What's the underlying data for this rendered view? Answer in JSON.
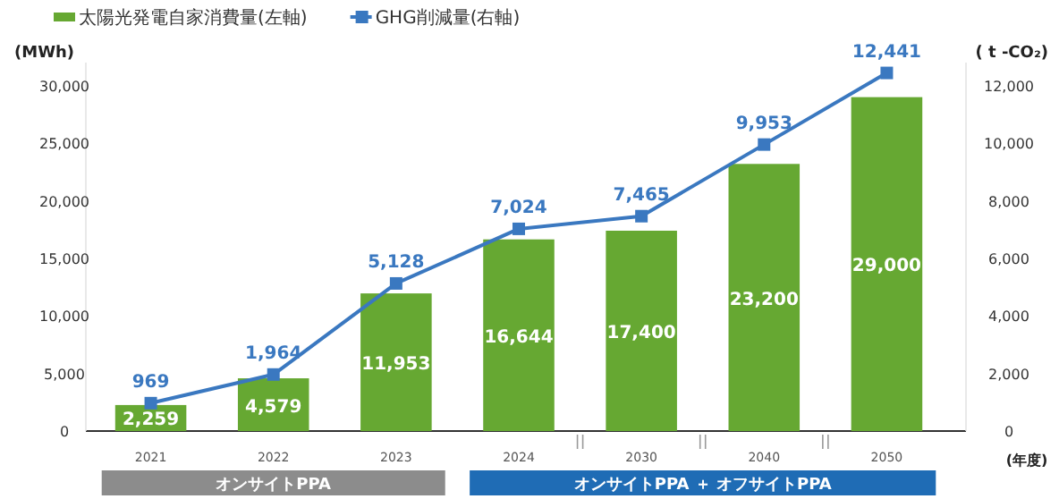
{
  "chart_data": {
    "type": "bar",
    "categories": [
      "2021",
      "2022",
      "2023",
      "2024",
      "2030",
      "2040",
      "2050"
    ],
    "series": [
      {
        "name": "太陽光発電自家消費量(左軸)",
        "color": "#66a832",
        "values": [
          2259,
          4579,
          11953,
          16644,
          17400,
          23200,
          29000
        ],
        "value_labels": [
          "2,259",
          "4,579",
          "11,953",
          "16,644",
          "17,400",
          "23,200",
          "29,000"
        ]
      },
      {
        "name": "GHG削減量(右軸)",
        "type": "line",
        "axis": "y2",
        "color": "#3a78c0",
        "marker": "square",
        "values": [
          969,
          1964,
          5128,
          7024,
          7465,
          9953,
          12441
        ],
        "value_labels": [
          "969",
          "1,964",
          "5,128",
          "7,024",
          "7,465",
          "9,953",
          "12,441"
        ]
      }
    ],
    "ylabel": "(MWh)",
    "y2label": "( t -CO₂)",
    "xlabel": "(年度)",
    "ylim": [
      0,
      32000
    ],
    "yticks": [
      0,
      {
        "value": 5000,
        "label": "5,000"
      },
      {
        "value": 10000,
        "label": "10,000"
      },
      {
        "value": 15000,
        "label": "15,000"
      },
      {
        "value": 20000,
        "label": "20,000"
      },
      {
        "value": 25000,
        "label": "25,000"
      },
      {
        "value": 30000,
        "label": "30,000"
      }
    ],
    "y2lim": [
      0,
      12800
    ],
    "y2ticks": [
      0,
      {
        "value": 2000,
        "label": "2,000"
      },
      {
        "value": 4000,
        "label": "4,000"
      },
      {
        "value": 6000,
        "label": "6,000"
      },
      {
        "value": 8000,
        "label": "8,000"
      },
      {
        "value": 10000,
        "label": "10,000"
      },
      {
        "value": 12000,
        "label": "12,000"
      }
    ],
    "annotations": [
      "オンサイトPPA",
      "オンサイトPPA ＋ オフサイトPPA"
    ],
    "legend": "top left"
  }
}
